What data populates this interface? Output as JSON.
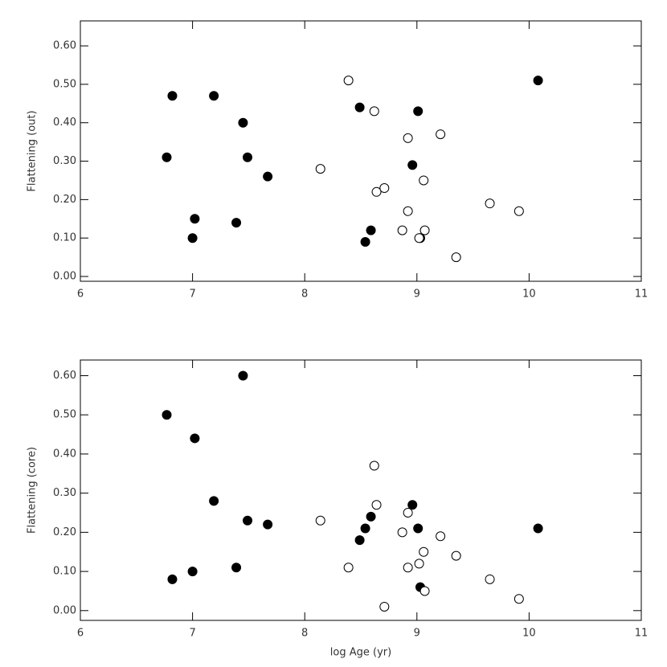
{
  "chart_data": [
    {
      "type": "scatter",
      "y_label": "Flattening (out)",
      "xlim": [
        6,
        11
      ],
      "xticks": [
        6,
        7,
        8,
        9,
        10,
        11
      ],
      "ylim": [
        -0.0125,
        0.665
      ],
      "yticks": [
        {
          "value": 0,
          "label": "0.00"
        },
        {
          "value": 0.1,
          "label": "0.10"
        },
        {
          "value": 0.2,
          "label": "0.20"
        },
        {
          "value": 0.3,
          "label": "0.30"
        },
        {
          "value": 0.4,
          "label": "0.40"
        },
        {
          "value": 0.5,
          "label": "0.50"
        },
        {
          "value": 0.6,
          "label": "0.60"
        }
      ],
      "series": [
        {
          "color": "#000000",
          "marker": "filled",
          "x": [
            6.77,
            6.82,
            7.0,
            7.02,
            7.19,
            7.39,
            7.45,
            7.49,
            7.67,
            8.49,
            8.54,
            8.59,
            8.96,
            9.01,
            9.03,
            10.08
          ],
          "values": [
            0.31,
            0.47,
            0.1,
            0.15,
            0.47,
            0.14,
            0.4,
            0.31,
            0.26,
            0.44,
            0.09,
            0.12,
            0.29,
            0.43,
            0.1,
            0.51
          ]
        },
        {
          "color": "#000000",
          "marker": "open",
          "x": [
            8.14,
            8.39,
            8.62,
            8.64,
            8.71,
            8.87,
            8.92,
            8.92,
            9.02,
            9.06,
            9.07,
            9.21,
            9.35,
            9.65,
            9.91
          ],
          "values": [
            0.28,
            0.51,
            0.43,
            0.22,
            0.23,
            0.12,
            0.36,
            0.17,
            0.1,
            0.25,
            0.12,
            0.37,
            0.05,
            0.19,
            0.17
          ]
        }
      ]
    },
    {
      "type": "scatter",
      "y_label": "Flattening (core)",
      "x_label": "log Age (yr)",
      "xlim": [
        6,
        11
      ],
      "xticks": [
        6,
        7,
        8,
        9,
        10,
        11
      ],
      "ylim": [
        -0.025,
        0.64
      ],
      "yticks": [
        {
          "value": 0,
          "label": "0.00"
        },
        {
          "value": 0.1,
          "label": "0.10"
        },
        {
          "value": 0.2,
          "label": "0.20"
        },
        {
          "value": 0.3,
          "label": "0.30"
        },
        {
          "value": 0.4,
          "label": "0.40"
        },
        {
          "value": 0.5,
          "label": "0.50"
        },
        {
          "value": 0.6,
          "label": "0.60"
        }
      ],
      "series": [
        {
          "color": "#000000",
          "marker": "filled",
          "x": [
            6.77,
            6.82,
            7.0,
            7.02,
            7.19,
            7.39,
            7.45,
            7.49,
            7.67,
            8.49,
            8.54,
            8.59,
            8.96,
            9.01,
            9.03,
            10.08
          ],
          "values": [
            0.5,
            0.08,
            0.1,
            0.44,
            0.28,
            0.11,
            0.6,
            0.23,
            0.22,
            0.18,
            0.21,
            0.24,
            0.27,
            0.21,
            0.06,
            0.21
          ]
        },
        {
          "color": "#000000",
          "marker": "open",
          "x": [
            8.14,
            8.39,
            8.62,
            8.64,
            8.71,
            8.87,
            8.92,
            8.92,
            9.02,
            9.06,
            9.07,
            9.21,
            9.35,
            9.65,
            9.91
          ],
          "values": [
            0.23,
            0.11,
            0.37,
            0.27,
            0.01,
            0.2,
            0.25,
            0.11,
            0.12,
            0.15,
            0.05,
            0.19,
            0.14,
            0.08,
            0.03
          ]
        }
      ]
    }
  ]
}
